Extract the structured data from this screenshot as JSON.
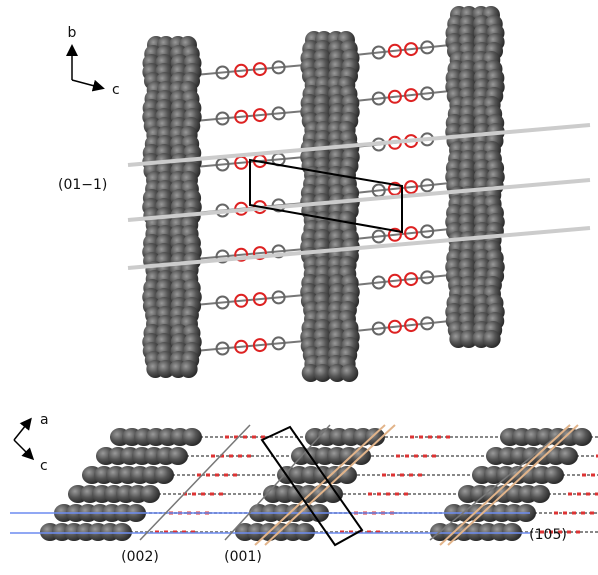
{
  "top_panel": {
    "axis_up": "b",
    "axis_right": "c",
    "plane_label": "(01−1)"
  },
  "bottom_panel": {
    "axis_up": "a",
    "axis_down": "c",
    "plane_labels": [
      "(002)",
      "(001)",
      "(105)"
    ]
  }
}
